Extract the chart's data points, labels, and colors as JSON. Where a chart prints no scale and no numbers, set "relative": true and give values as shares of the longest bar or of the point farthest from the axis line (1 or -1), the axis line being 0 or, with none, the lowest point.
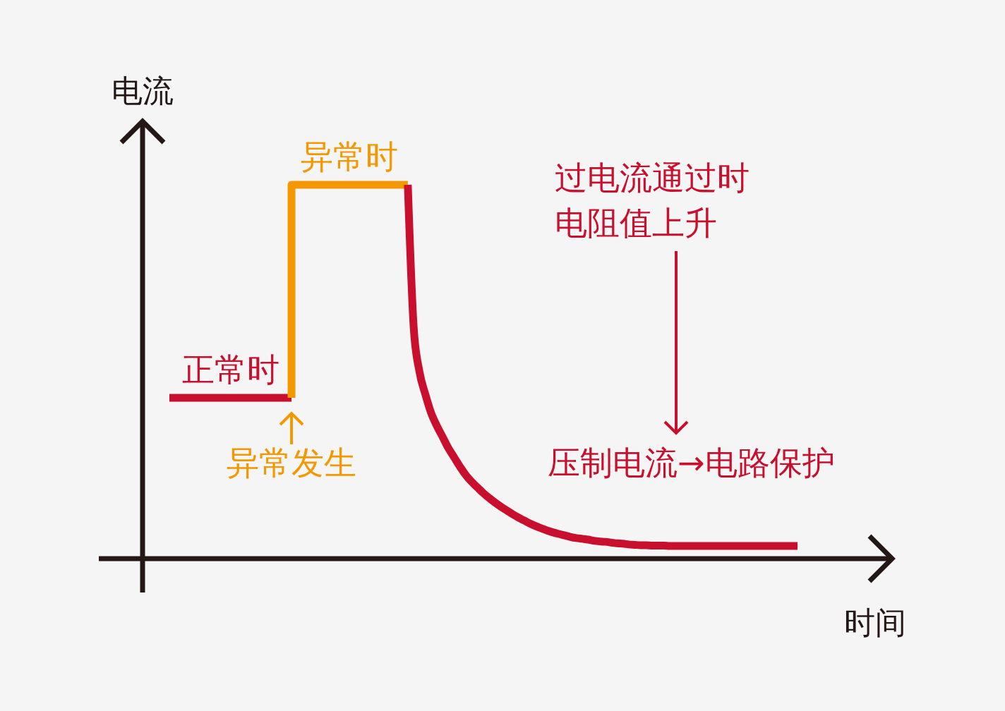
{
  "chart_data": {
    "type": "line",
    "relative": true,
    "xlabel": "时间",
    "ylabel": "电流",
    "line_style": "solid",
    "categories": [
      null,
      null,
      null,
      null,
      null,
      null,
      null,
      null,
      null,
      null,
      null,
      null,
      null,
      null,
      null,
      null,
      null,
      null,
      null,
      null,
      null,
      null,
      null,
      null,
      null,
      null,
      null,
      null,
      null,
      null,
      null,
      null,
      null,
      null,
      null,
      null,
      null,
      null,
      null,
      null,
      null,
      null,
      null,
      null,
      null,
      null,
      null,
      null,
      null,
      null,
      null,
      null,
      null,
      null,
      null,
      null,
      null,
      null,
      null,
      null,
      null,
      null,
      null,
      null,
      null,
      null,
      null,
      null,
      null,
      null,
      null,
      null,
      null,
      null,
      null,
      null,
      null,
      null,
      null,
      null,
      null,
      null,
      null,
      null,
      null,
      null,
      null,
      null,
      null,
      null,
      null,
      null,
      null,
      null,
      null,
      null,
      null,
      null,
      null,
      null,
      null,
      null,
      null,
      null,
      null,
      null,
      null,
      null,
      null
    ],
    "series": [
      {
        "name": "正常时",
        "color": "#c8102e",
        "values": [
          0.43,
          0.43,
          0.43,
          0.43,
          0.43,
          0.43,
          0.43,
          0.43,
          0.43,
          0.43,
          0.43,
          0.43,
          0.43,
          0.43,
          0.43,
          0.43,
          0.43,
          0.43,
          0.43,
          0.43,
          0.43,
          0.43,
          null,
          null,
          null,
          null,
          null,
          null,
          null,
          null,
          null,
          null,
          null,
          null,
          null,
          null,
          null,
          null,
          null,
          null,
          null,
          null,
          null,
          null,
          null,
          null,
          null,
          null,
          null,
          null,
          null,
          null,
          null,
          null,
          null,
          null,
          null,
          null,
          null,
          null,
          null,
          null,
          null,
          null,
          null,
          null,
          null,
          null,
          null,
          null,
          null,
          null,
          null,
          null,
          null,
          null,
          null,
          null,
          null,
          null,
          null,
          null,
          null,
          null,
          null,
          null,
          null,
          null,
          null,
          null,
          null,
          null,
          null,
          null,
          null,
          null,
          null,
          null,
          null,
          null,
          null,
          null,
          null,
          null,
          null,
          null,
          null,
          null,
          null
        ]
      },
      {
        "name": "异常时",
        "type": "step",
        "color": "#f39800",
        "values": [
          null,
          null,
          null,
          null,
          null,
          null,
          null,
          null,
          null,
          null,
          null,
          null,
          null,
          null,
          null,
          null,
          null,
          null,
          null,
          null,
          null,
          0.43,
          1,
          1,
          1,
          1,
          1,
          1,
          1,
          1,
          1,
          1,
          1,
          1,
          1,
          1,
          1,
          1,
          1,
          1,
          1,
          1,
          null,
          null,
          null,
          null,
          null,
          null,
          null,
          null,
          null,
          null,
          null,
          null,
          null,
          null,
          null,
          null,
          null,
          null,
          null,
          null,
          null,
          null,
          null,
          null,
          null,
          null,
          null,
          null,
          null,
          null,
          null,
          null,
          null,
          null,
          null,
          null,
          null,
          null,
          null,
          null,
          null,
          null,
          null,
          null,
          null,
          null,
          null,
          null,
          null,
          null,
          null,
          null,
          null,
          null,
          null,
          null,
          null,
          null,
          null,
          null,
          null,
          null,
          null,
          null,
          null,
          null,
          null
        ]
      },
      {
        "color": "#c8102e",
        "values": [
          null,
          null,
          null,
          null,
          null,
          null,
          null,
          null,
          null,
          null,
          null,
          null,
          null,
          null,
          null,
          null,
          null,
          null,
          null,
          null,
          null,
          null,
          null,
          null,
          null,
          null,
          null,
          null,
          null,
          null,
          null,
          null,
          null,
          null,
          null,
          null,
          null,
          null,
          null,
          null,
          null,
          1,
          0.62,
          0.5,
          0.44,
          0.39,
          0.355,
          0.325,
          0.295,
          0.27,
          0.245,
          0.223,
          0.205,
          0.19,
          0.175,
          0.162,
          0.15,
          0.139,
          0.129,
          0.119,
          0.11,
          0.102,
          0.094,
          0.087,
          0.081,
          0.075,
          0.07,
          0.066,
          0.062,
          0.058,
          0.055,
          0.053,
          0.051,
          0.048,
          0.046,
          0.045,
          0.043,
          0.041,
          0.04,
          0.038,
          0.037,
          0.036,
          0.036,
          0.035,
          0.035,
          0.035,
          0.034,
          0.034,
          0.034,
          0.034,
          0.034,
          0.034,
          0.034,
          0.034,
          0.034,
          0.034,
          0.034,
          0.034,
          0.034,
          0.034,
          0.034,
          0.034,
          0.034,
          0.034,
          0.034,
          0.034,
          0.034,
          0.034,
          0.034
        ]
      }
    ],
    "annotations": [
      "异常发生",
      "过电流通过时",
      "电阻值上升",
      "压制电流→电路保护"
    ]
  }
}
